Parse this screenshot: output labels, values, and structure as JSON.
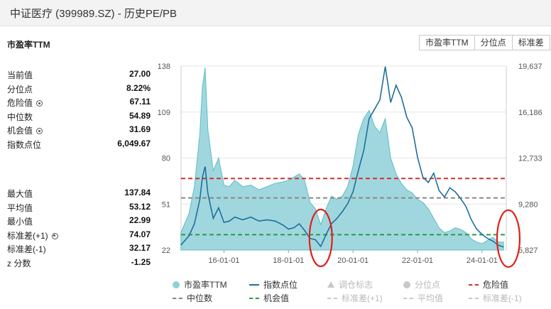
{
  "window_title": "中证医疗 (399989.SZ) - 历史PE/PB",
  "section_title": "市盈率TTM",
  "tabs": [
    {
      "label": "市盈率TTM"
    },
    {
      "label": "分位点"
    },
    {
      "label": "标准差"
    }
  ],
  "stats_top": [
    {
      "label": "当前值",
      "value": "27.00",
      "gear": false
    },
    {
      "label": "分位点",
      "value": "8.22%",
      "gear": false
    },
    {
      "label": "危险值",
      "value": "67.11",
      "gear": true
    },
    {
      "label": "中位数",
      "value": "54.89",
      "gear": false
    },
    {
      "label": "机会值",
      "value": "31.69",
      "gear": true
    },
    {
      "label": "指数点位",
      "value": "6,049.67",
      "gear": false
    }
  ],
  "stats_bottom": [
    {
      "label": "最大值",
      "value": "137.84",
      "gear": false
    },
    {
      "label": "平均值",
      "value": "53.12",
      "gear": false
    },
    {
      "label": "最小值",
      "value": "22.99",
      "gear": false
    },
    {
      "label": "标准差(+1)",
      "value": "74.07",
      "gear": true
    },
    {
      "label": "标准差(-1)",
      "value": "32.17",
      "gear": false
    },
    {
      "label": "z 分数",
      "value": "-1.25",
      "gear": false
    }
  ],
  "colors": {
    "pe_fill": "#8fd0d8",
    "pe_line": "#5bbcc8",
    "index_line": "#1f6e9c",
    "danger": "#d0302b",
    "median": "#888888",
    "opportunity": "#2a9a45",
    "annotation": "#e0201b",
    "grid": "#e6e6e6"
  },
  "legend": [
    {
      "label": "市盈率TTM",
      "symbol": "dot",
      "color": "#8fd0d8",
      "active": true
    },
    {
      "label": "指数点位",
      "symbol": "line",
      "color": "#1f6e9c",
      "active": true
    },
    {
      "label": "调仓标志",
      "symbol": "triangle",
      "color": "#c8c8c8",
      "active": false
    },
    {
      "label": "分位点",
      "symbol": "dot",
      "color": "#c8c8c8",
      "active": false
    },
    {
      "label": "危险值",
      "symbol": "dash",
      "color": "#d0302b",
      "active": true
    },
    {
      "label": "中位数",
      "symbol": "dash",
      "color": "#888888",
      "active": true
    },
    {
      "label": "机会值",
      "symbol": "dash",
      "color": "#2a9a45",
      "active": true
    },
    {
      "label": "标准差(+1)",
      "symbol": "dash",
      "color": "#c8c8c8",
      "active": false
    },
    {
      "label": "平均值",
      "symbol": "dash",
      "color": "#c8c8c8",
      "active": false
    },
    {
      "label": "标准差(-1)",
      "symbol": "dash",
      "color": "#c8c8c8",
      "active": false
    }
  ],
  "chart_data": {
    "type": "area",
    "x_tick_labels": [
      "16-01-01",
      "18-01-01",
      "20-01-01",
      "22-01-01",
      "24-01-01"
    ],
    "y_left": {
      "ticks": [
        "138",
        "109",
        "80",
        "51",
        "22"
      ],
      "range": [
        22,
        138
      ]
    },
    "y_right": {
      "ticks": [
        "19,637",
        "16,186",
        "12,733",
        "9,280",
        "5,827"
      ],
      "range": [
        5827,
        19637
      ]
    },
    "reference_lines": [
      {
        "name": "危险值",
        "value": 67.11
      },
      {
        "name": "中位数",
        "value": 54.89
      },
      {
        "name": "机会值",
        "value": 31.69
      }
    ],
    "series": [
      {
        "name": "市盈率TTM",
        "axis": "left",
        "x": [
          "2014-09",
          "2014-12",
          "2015-02",
          "2015-04",
          "2015-05",
          "2015-06",
          "2015-07",
          "2015-09",
          "2015-11",
          "2016-01",
          "2016-03",
          "2016-05",
          "2016-08",
          "2016-11",
          "2017-02",
          "2017-05",
          "2017-08",
          "2017-11",
          "2018-01",
          "2018-03",
          "2018-05",
          "2018-07",
          "2018-09",
          "2018-11",
          "2019-01",
          "2019-03",
          "2019-05",
          "2019-07",
          "2019-09",
          "2019-11",
          "2020-01",
          "2020-03",
          "2020-05",
          "2020-07",
          "2020-09",
          "2020-11",
          "2021-01",
          "2021-03",
          "2021-05",
          "2021-07",
          "2021-09",
          "2021-11",
          "2022-01",
          "2022-03",
          "2022-05",
          "2022-07",
          "2022-09",
          "2022-11",
          "2023-01",
          "2023-03",
          "2023-05",
          "2023-07",
          "2023-09",
          "2023-11",
          "2024-01",
          "2024-03",
          "2024-05",
          "2024-07",
          "2024-09"
        ],
        "values": [
          33,
          45,
          62,
          95,
          125,
          137,
          98,
          72,
          80,
          63,
          62,
          66,
          62,
          63,
          60,
          62,
          64,
          65,
          66,
          68,
          70,
          66,
          52,
          48,
          38,
          48,
          56,
          54,
          56,
          62,
          75,
          95,
          105,
          110,
          100,
          96,
          105,
          80,
          70,
          64,
          60,
          58,
          54,
          52,
          48,
          42,
          36,
          33,
          34,
          36,
          35,
          33,
          29,
          27,
          26,
          28,
          30,
          27,
          27
        ]
      },
      {
        "name": "指数点位",
        "axis": "right",
        "x": [
          "2014-09",
          "2014-12",
          "2015-02",
          "2015-04",
          "2015-05",
          "2015-06",
          "2015-07",
          "2015-09",
          "2015-11",
          "2016-01",
          "2016-03",
          "2016-05",
          "2016-08",
          "2016-11",
          "2017-02",
          "2017-05",
          "2017-08",
          "2017-11",
          "2018-01",
          "2018-03",
          "2018-05",
          "2018-07",
          "2018-09",
          "2018-11",
          "2019-01",
          "2019-03",
          "2019-05",
          "2019-07",
          "2019-09",
          "2019-11",
          "2020-01",
          "2020-03",
          "2020-05",
          "2020-07",
          "2020-09",
          "2020-11",
          "2021-01",
          "2021-03",
          "2021-05",
          "2021-07",
          "2021-09",
          "2021-11",
          "2022-01",
          "2022-03",
          "2022-05",
          "2022-07",
          "2022-09",
          "2022-11",
          "2023-01",
          "2023-03",
          "2023-05",
          "2023-07",
          "2023-09",
          "2023-11",
          "2024-01",
          "2024-03",
          "2024-05",
          "2024-07",
          "2024-09"
        ],
        "values": [
          6200,
          6900,
          7800,
          9600,
          11300,
          12100,
          10100,
          8200,
          9000,
          7900,
          8000,
          8300,
          8100,
          8300,
          8000,
          8100,
          8000,
          7700,
          7400,
          7500,
          7800,
          7300,
          6700,
          6600,
          6100,
          7000,
          7800,
          8200,
          8700,
          9300,
          10200,
          11800,
          13300,
          15700,
          16400,
          17100,
          19600,
          16900,
          18200,
          17300,
          15800,
          15000,
          12800,
          11300,
          10900,
          11600,
          10300,
          9800,
          10500,
          10200,
          9700,
          9100,
          8100,
          7400,
          7000,
          6700,
          6500,
          6200,
          6050
        ]
      }
    ],
    "annotations": [
      {
        "shape": "ellipse",
        "around": "2019-01"
      },
      {
        "shape": "ellipse",
        "around": "2024-09"
      }
    ]
  }
}
